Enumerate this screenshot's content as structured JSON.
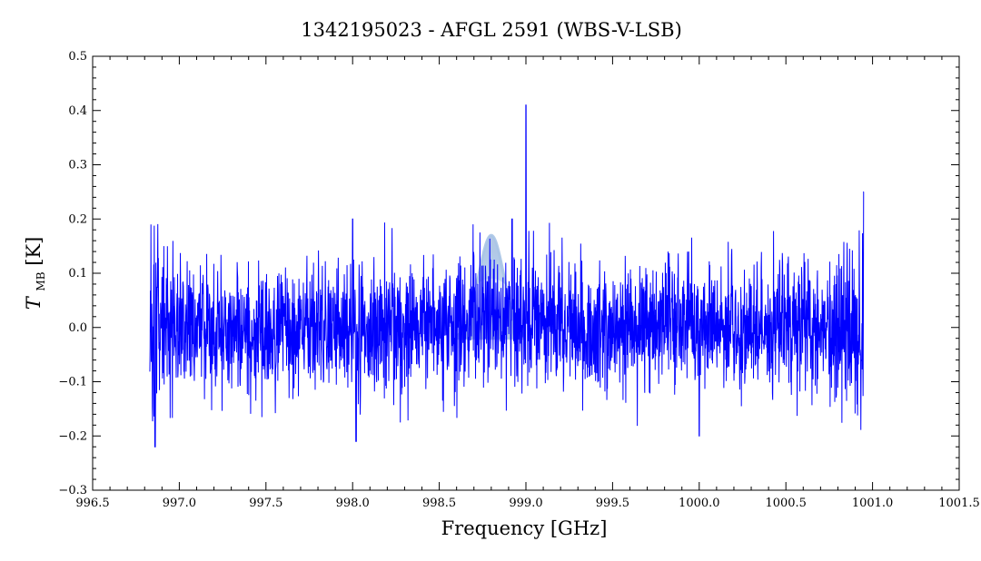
{
  "chart_data": {
    "type": "line",
    "title": "1342195023 - AFGL 2591 (WBS-V-LSB)",
    "xlabel": "Frequency [GHz]",
    "ylabel_main": "T",
    "ylabel_sub": "MB",
    "ylabel_unit": " [K]",
    "xlim": [
      996.5,
      1001.5
    ],
    "ylim": [
      -0.3,
      0.5
    ],
    "x_ticks": [
      996.5,
      997.0,
      997.5,
      998.0,
      998.5,
      999.0,
      999.5,
      1000.0,
      1000.5,
      1001.0,
      1001.5
    ],
    "x_tick_labels": [
      "996.5",
      "997.0",
      "997.5",
      "998.0",
      "998.5",
      "999.0",
      "999.5",
      "1000.0",
      "1000.5",
      "1001.0",
      "1001.5"
    ],
    "y_ticks": [
      -0.3,
      -0.2,
      -0.1,
      0.0,
      0.1,
      0.2,
      0.3,
      0.4,
      0.5
    ],
    "y_tick_labels": [
      "−0.3",
      "−0.2",
      "−0.1",
      "0.0",
      "0.1",
      "0.2",
      "0.3",
      "0.4",
      "0.5"
    ],
    "grid": false,
    "series": [
      {
        "color": "#0000ff",
        "x_range": [
          996.83,
          1000.95
        ],
        "noise_rms": 0.06,
        "features": [
          {
            "x": 999.0,
            "peak": 0.41
          },
          {
            "x": 998.92,
            "peak": 0.2
          },
          {
            "x": 998.0,
            "peak": 0.2
          },
          {
            "x": 1000.95,
            "peak": 0.25
          },
          {
            "x": 996.86,
            "peak": -0.22
          },
          {
            "x": 998.02,
            "peak": -0.21
          },
          {
            "x": 1000.0,
            "peak": -0.2
          }
        ]
      }
    ],
    "overlay": {
      "shape": "emission-profile",
      "center": 998.8,
      "peak": 0.17,
      "color": "#a8c4e6"
    }
  }
}
